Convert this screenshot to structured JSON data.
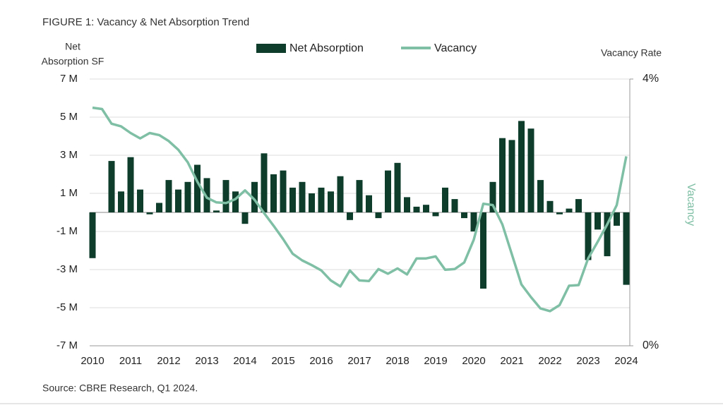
{
  "chart_data": {
    "type": "bar",
    "title": "FIGURE 1: Vacancy & Net Absorption Trend",
    "ylabel": [
      "Net",
      "Absorption SF"
    ],
    "y2label_top": "Vacancy Rate",
    "y2label": "Vacancy",
    "source": "Source: CBRE Research, Q1 2024.",
    "categories": [
      "2010",
      null,
      null,
      null,
      "2011",
      null,
      null,
      null,
      "2012",
      null,
      null,
      null,
      "2013",
      null,
      null,
      null,
      "2014",
      null,
      null,
      null,
      "2015",
      null,
      null,
      null,
      "2016",
      null,
      null,
      null,
      "2017",
      null,
      null,
      null,
      "2018",
      null,
      null,
      null,
      "2019",
      null,
      null,
      null,
      "2020",
      null,
      null,
      null,
      "2021",
      null,
      null,
      null,
      "2022",
      null,
      null,
      null,
      "2023",
      null,
      null,
      null,
      "2024"
    ],
    "series": [
      {
        "name": "Net Absorption",
        "type": "bar",
        "color": "#0f3d2c",
        "values": [
          -2.4,
          0,
          2.7,
          1.1,
          2.9,
          1.2,
          -0.1,
          0.5,
          1.7,
          1.2,
          1.6,
          2.5,
          1.8,
          0.1,
          1.7,
          1.1,
          -0.6,
          1.6,
          3.1,
          2.0,
          2.2,
          1.3,
          1.6,
          1.0,
          1.3,
          1.1,
          1.9,
          -0.4,
          1.7,
          0.9,
          -0.3,
          2.2,
          2.6,
          0.8,
          0.3,
          0.4,
          -0.2,
          1.3,
          0.7,
          -0.3,
          -1.0,
          -4.0,
          1.6,
          3.9,
          3.8,
          4.8,
          4.4,
          1.7,
          0.6,
          -0.1,
          0.2,
          0.7,
          -2.5,
          -0.9,
          -2.3,
          -0.7,
          -3.8
        ]
      },
      {
        "name": "Vacancy",
        "type": "line",
        "axis": "y2",
        "color": "#7fbfa5",
        "values": [
          3.57,
          3.55,
          3.33,
          3.29,
          3.19,
          3.11,
          3.19,
          3.16,
          3.07,
          2.94,
          2.75,
          2.46,
          2.22,
          2.15,
          2.14,
          2.2,
          2.33,
          2.19,
          1.99,
          1.8,
          1.6,
          1.38,
          1.28,
          1.21,
          1.13,
          0.98,
          0.89,
          1.13,
          0.98,
          0.97,
          1.15,
          1.08,
          1.16,
          1.07,
          1.31,
          1.31,
          1.34,
          1.14,
          1.15,
          1.25,
          1.59,
          2.13,
          2.11,
          1.82,
          1.37,
          0.92,
          0.73,
          0.56,
          0.52,
          0.61,
          0.9,
          0.91,
          1.31,
          1.56,
          1.82,
          2.11,
          2.84
        ]
      }
    ],
    "ylim": [
      -7,
      7
    ],
    "yticks": [
      {
        "value": -7,
        "label": "-7 M"
      },
      {
        "value": -5,
        "label": "-5 M"
      },
      {
        "value": -3,
        "label": "-3 M"
      },
      {
        "value": -1,
        "label": "-1 M"
      },
      {
        "value": 1,
        "label": "1 M"
      },
      {
        "value": 3,
        "label": "3 M"
      },
      {
        "value": 5,
        "label": "5 M"
      },
      {
        "value": 7,
        "label": "7 M"
      }
    ],
    "y2lim": [
      0,
      4
    ],
    "y2ticks": [
      {
        "value": 0,
        "label": "0%"
      },
      {
        "value": 4,
        "label": "4%"
      }
    ],
    "grid": true
  }
}
